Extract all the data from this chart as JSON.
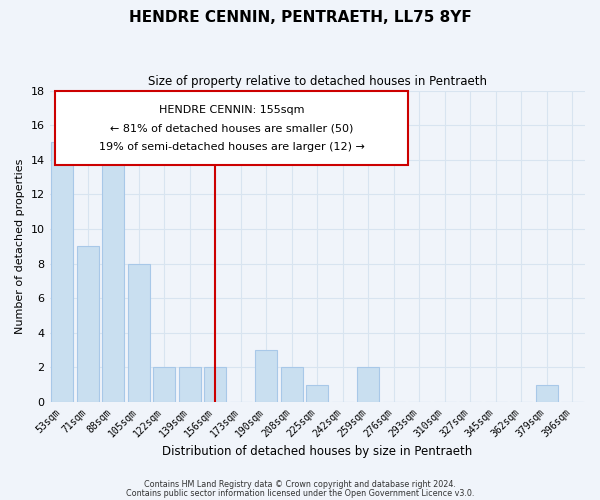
{
  "title": "HENDRE CENNIN, PENTRAETH, LL75 8YF",
  "subtitle": "Size of property relative to detached houses in Pentraeth",
  "xlabel": "Distribution of detached houses by size in Pentraeth",
  "ylabel": "Number of detached properties",
  "bin_labels": [
    "53sqm",
    "71sqm",
    "88sqm",
    "105sqm",
    "122sqm",
    "139sqm",
    "156sqm",
    "173sqm",
    "190sqm",
    "208sqm",
    "225sqm",
    "242sqm",
    "259sqm",
    "276sqm",
    "293sqm",
    "310sqm",
    "327sqm",
    "345sqm",
    "362sqm",
    "379sqm",
    "396sqm"
  ],
  "bar_values": [
    15,
    9,
    15,
    8,
    2,
    2,
    2,
    0,
    3,
    2,
    1,
    0,
    2,
    0,
    0,
    0,
    0,
    0,
    0,
    1,
    0
  ],
  "bar_color": "#c9dff0",
  "bar_edge_color": "#a8c8e8",
  "vline_index": 6,
  "vline_color": "#cc0000",
  "ylim": [
    0,
    18
  ],
  "yticks": [
    0,
    2,
    4,
    6,
    8,
    10,
    12,
    14,
    16,
    18
  ],
  "annotation_title": "HENDRE CENNIN: 155sqm",
  "annotation_line1": "← 81% of detached houses are smaller (50)",
  "annotation_line2": "19% of semi-detached houses are larger (12) →",
  "footer_line1": "Contains HM Land Registry data © Crown copyright and database right 2024.",
  "footer_line2": "Contains public sector information licensed under the Open Government Licence v3.0.",
  "grid_color": "#d8e4f0",
  "background_color": "#f0f4fa"
}
